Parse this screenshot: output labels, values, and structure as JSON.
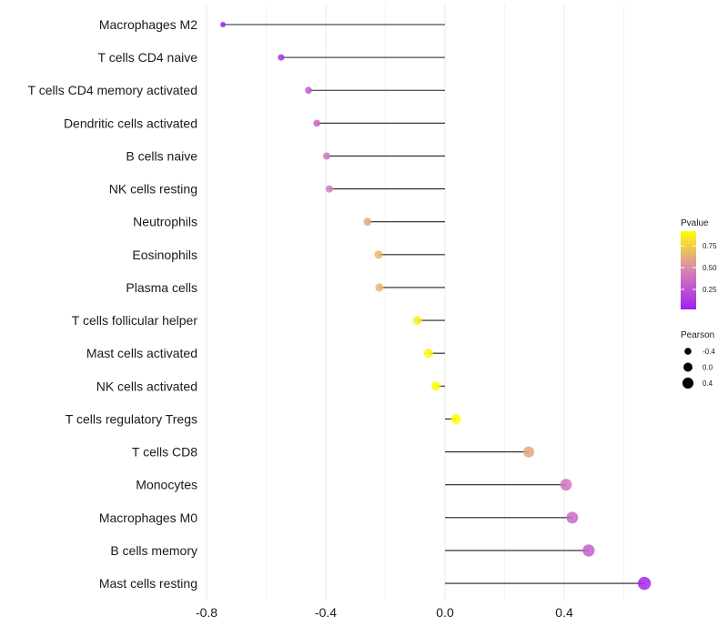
{
  "chart_data": {
    "type": "lollipop",
    "title": "",
    "xlabel": "",
    "ylabel": "",
    "xlim": [
      -0.8,
      0.7
    ],
    "x_ticks": [
      -0.8,
      -0.4,
      0.0,
      0.4
    ],
    "x_tick_labels": [
      "-0.8",
      "-0.4",
      "0.0",
      "0.4"
    ],
    "grid": true,
    "categories": [
      "Macrophages M2",
      "T cells CD4 naive",
      "T cells CD4 memory activated",
      "Dendritic cells activated",
      "B cells naive",
      "NK cells resting",
      "Neutrophils",
      "Eosinophils",
      "Plasma cells",
      "T cells follicular helper",
      "Mast cells activated",
      "NK cells activated",
      "T cells regulatory  Tregs ",
      "T cells CD8",
      "Monocytes",
      "Macrophages M0",
      "B cells memory",
      "Mast cells resting"
    ],
    "pearson": [
      -0.745,
      -0.55,
      -0.458,
      -0.43,
      -0.397,
      -0.388,
      -0.26,
      -0.223,
      -0.22,
      -0.092,
      -0.055,
      -0.03,
      0.037,
      0.281,
      0.406,
      0.427,
      0.482,
      0.669
    ],
    "pvalue": [
      0.02,
      0.1,
      0.3,
      0.35,
      0.4,
      0.42,
      0.62,
      0.66,
      0.66,
      0.86,
      0.88,
      0.92,
      0.92,
      0.6,
      0.4,
      0.35,
      0.3,
      0.05
    ],
    "legend": {
      "placement": "right",
      "color_title": "Pvalue",
      "color_ticks": [
        0.25,
        0.5,
        0.75
      ],
      "color_tick_labels": [
        "0.25",
        "0.50",
        "0.75"
      ],
      "color_range": [
        0.02,
        0.92
      ],
      "color_low": "#a020f0",
      "color_mid": "#d983b4",
      "color_high": "#ffff00",
      "size_title": "Pearson",
      "size_values": [
        -0.4,
        0.0,
        0.4
      ],
      "size_labels": [
        "-0.4",
        "0.0",
        "0.4"
      ]
    }
  }
}
